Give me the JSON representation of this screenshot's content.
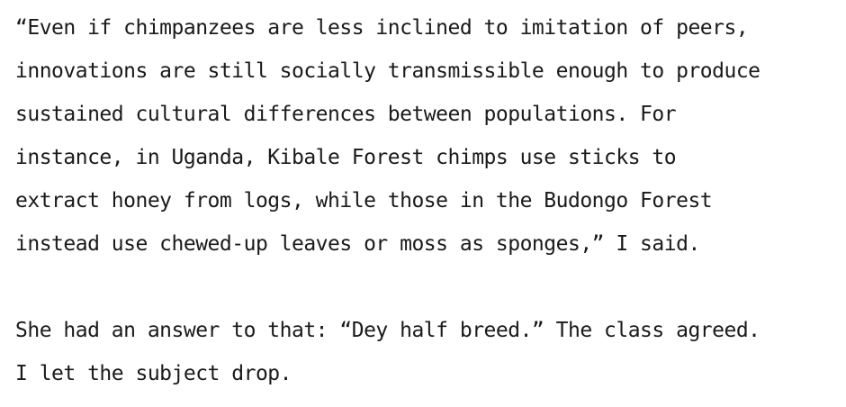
{
  "paragraphs": [
    {
      "lines": [
        "“Even if chimpanzees are less inclined to imitation of peers,",
        "innovations are still socially transmissible enough to produce",
        "sustained cultural differences between populations. For",
        "instance, in Uganda, Kibale Forest chimps use sticks to",
        "extract honey from logs, while those in the Budongo Forest",
        "instead use chewed-up leaves or moss as sponges,” I said."
      ]
    },
    {
      "lines": [
        "She had an answer to that: “Dey half breed.” The class agreed.",
        "I let the subject drop."
      ]
    }
  ]
}
